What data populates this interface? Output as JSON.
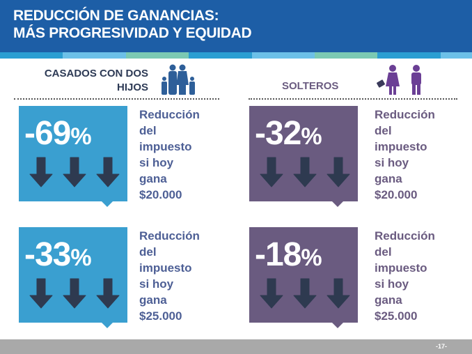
{
  "header": {
    "title_line1": "REDUCCIÓN DE GANANCIAS:",
    "title_line2": "MÁS PROGRESIVIDAD Y EQUIDAD"
  },
  "colors": {
    "header": "#1d5ea6",
    "blue_card": "#3a9fd0",
    "purple_card": "#6a5b80",
    "arrow": "#2e3a50"
  },
  "sections": {
    "casados": {
      "label_line1": "CASADOS CON DOS",
      "label_line2": "HIJOS",
      "icon": "family-icon"
    },
    "solteros": {
      "label": "SOLTEROS",
      "icon": "single-people-icon"
    }
  },
  "cards": [
    {
      "value": "-69",
      "unit": "%",
      "desc": [
        "Reducción",
        "del",
        "impuesto",
        "si hoy",
        "gana",
        "$20.000"
      ]
    },
    {
      "value": "-33",
      "unit": "%",
      "desc": [
        "Reducción",
        "del",
        "impuesto",
        "si hoy",
        "gana",
        "$25.000"
      ]
    },
    {
      "value": "-32",
      "unit": "%",
      "desc": [
        "Reducción",
        "del",
        "impuesto",
        "si hoy",
        "gana",
        "$20.000"
      ]
    },
    {
      "value": "-18",
      "unit": "%",
      "desc": [
        "Reducción",
        "del",
        "impuesto",
        "si hoy",
        "gana",
        "$25.000"
      ]
    }
  ],
  "footer": {
    "page": "-17-"
  }
}
